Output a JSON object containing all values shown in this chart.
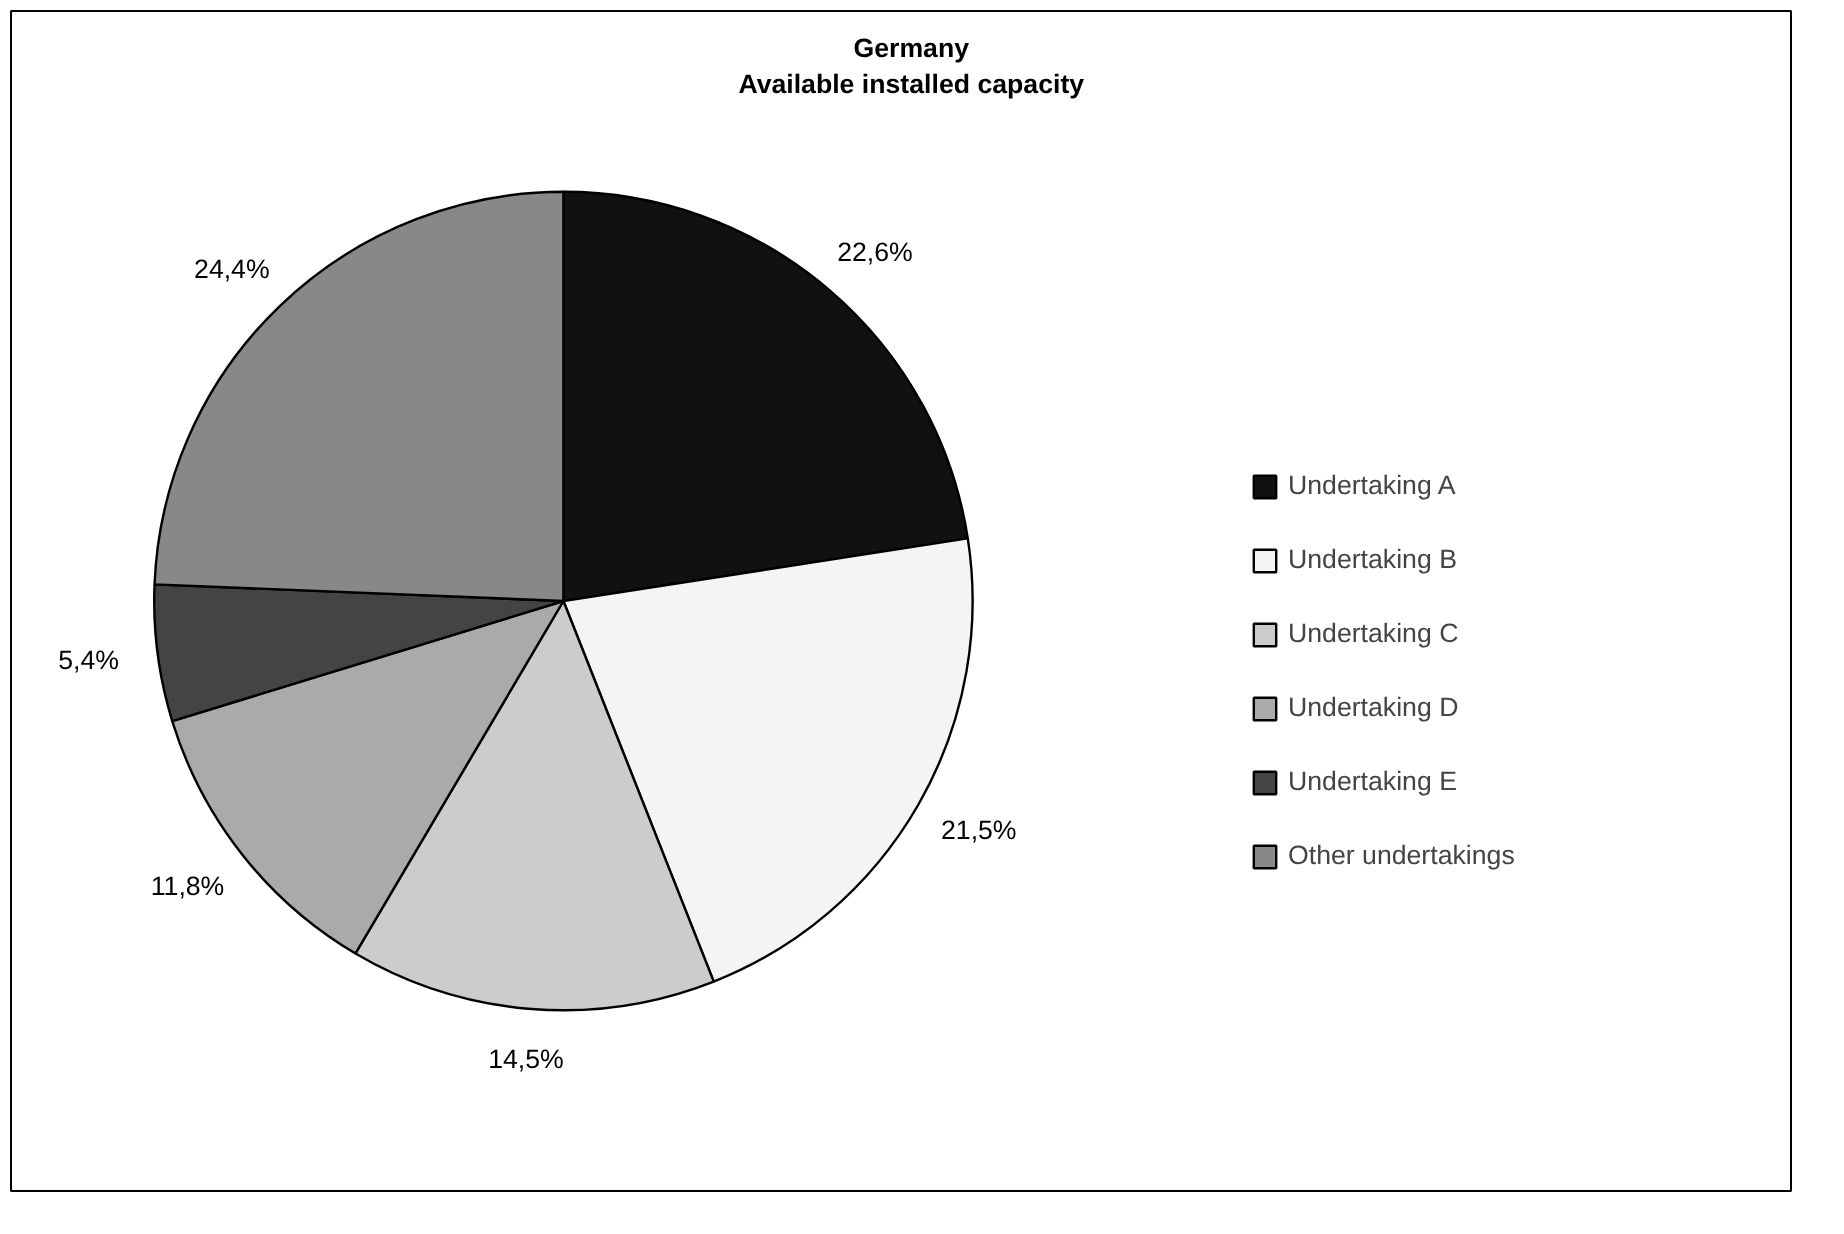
{
  "chart_data": {
    "type": "pie",
    "title": "Germany\nAvailable installed capacity",
    "categories": [
      "Undertaking A",
      "Undertaking B",
      "Undertaking C",
      "Undertaking D",
      "Undertaking E",
      "Other undertakings"
    ],
    "values": [
      22.6,
      21.5,
      14.5,
      11.8,
      5.4,
      24.4
    ],
    "value_labels": [
      "22,6%",
      "21,5%",
      "14,5%",
      "11,8%",
      "5,4%",
      "24,4%"
    ],
    "colors": [
      "#111111",
      "#f4f4f4",
      "#cccccc",
      "#aaaaaa",
      "#444444",
      "#888888"
    ],
    "legend": "right"
  }
}
